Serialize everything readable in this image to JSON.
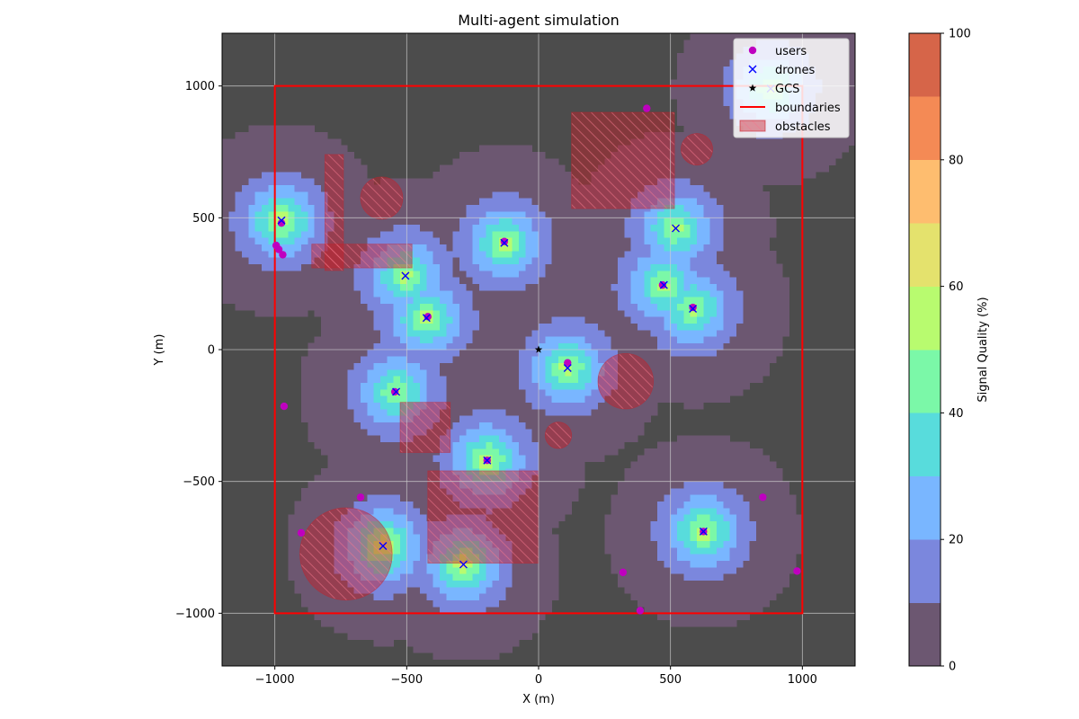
{
  "chart_data": {
    "type": "heatmap",
    "title": "Multi-agent simulation",
    "xlabel": "X (m)",
    "ylabel": "Y (m)",
    "xlim": [
      -1200,
      1200
    ],
    "ylim": [
      -1200,
      1200
    ],
    "xticks": [
      -1000,
      -500,
      0,
      500,
      1000
    ],
    "yticks": [
      -1000,
      -500,
      0,
      500,
      1000
    ],
    "xtick_labels": [
      "−1000",
      "−500",
      "0",
      "500",
      "1000"
    ],
    "ytick_labels": [
      "−1000",
      "−500",
      "0",
      "500",
      "1000"
    ],
    "grid": true,
    "legend_position": "top-right",
    "legend": [
      {
        "key": "users",
        "label": "users",
        "marker": "circle",
        "color": "#bf00bf"
      },
      {
        "key": "drones",
        "label": "drones",
        "marker": "x",
        "color": "#0000ff"
      },
      {
        "key": "gcs",
        "label": "GCS",
        "marker": "star",
        "color": "#000000"
      },
      {
        "key": "boundaries",
        "label": "boundaries",
        "marker": "line",
        "color": "#ff0000"
      },
      {
        "key": "obstacles",
        "label": "obstacles",
        "marker": "hatch",
        "color": "#dc2828"
      }
    ],
    "colorbar": {
      "label": "Signal Quality (%)",
      "min": 0,
      "max": 100,
      "ticks": [
        0,
        20,
        40,
        60,
        80,
        100
      ],
      "bands": [
        {
          "from": 0,
          "to": 10,
          "color": "#6c5771"
        },
        {
          "from": 10,
          "to": 20,
          "color": "#7b87dd"
        },
        {
          "from": 20,
          "to": 30,
          "color": "#79b6ff"
        },
        {
          "from": 30,
          "to": 40,
          "color": "#58dcdc"
        },
        {
          "from": 40,
          "to": 50,
          "color": "#7bf8a8"
        },
        {
          "from": 50,
          "to": 60,
          "color": "#b8fb6f"
        },
        {
          "from": 60,
          "to": 70,
          "color": "#e4e26d"
        },
        {
          "from": 70,
          "to": 80,
          "color": "#febd6f"
        },
        {
          "from": 80,
          "to": 90,
          "color": "#f48a55"
        },
        {
          "from": 90,
          "to": 100,
          "color": "#d66549"
        }
      ]
    },
    "background_color": "#4c4c4c",
    "boundaries": [
      [
        -1000,
        -1000
      ],
      [
        1000,
        -1000
      ],
      [
        1000,
        1000
      ],
      [
        -1000,
        1000
      ]
    ],
    "drones": [
      {
        "x": -975,
        "y": 490
      },
      {
        "x": -505,
        "y": 280
      },
      {
        "x": -425,
        "y": 120
      },
      {
        "x": -540,
        "y": -160
      },
      {
        "x": -195,
        "y": -420
      },
      {
        "x": -590,
        "y": -745
      },
      {
        "x": -285,
        "y": -815
      },
      {
        "x": -130,
        "y": 405
      },
      {
        "x": 110,
        "y": -70
      },
      {
        "x": 475,
        "y": 245
      },
      {
        "x": 520,
        "y": 460
      },
      {
        "x": 585,
        "y": 155
      },
      {
        "x": 625,
        "y": -690
      },
      {
        "x": 880,
        "y": 990
      }
    ],
    "users": [
      {
        "x": -975,
        "y": 480
      },
      {
        "x": -995,
        "y": 395
      },
      {
        "x": -985,
        "y": 380
      },
      {
        "x": -970,
        "y": 360
      },
      {
        "x": -965,
        "y": -215
      },
      {
        "x": -900,
        "y": -695
      },
      {
        "x": -675,
        "y": -560
      },
      {
        "x": -545,
        "y": -160
      },
      {
        "x": -420,
        "y": 125
      },
      {
        "x": -195,
        "y": -420
      },
      {
        "x": -130,
        "y": 410
      },
      {
        "x": 110,
        "y": -50
      },
      {
        "x": 410,
        "y": 915
      },
      {
        "x": 470,
        "y": 245
      },
      {
        "x": 585,
        "y": 160
      },
      {
        "x": 625,
        "y": -690
      },
      {
        "x": 320,
        "y": -845
      },
      {
        "x": 385,
        "y": -990
      },
      {
        "x": 850,
        "y": -560
      },
      {
        "x": 980,
        "y": -840
      }
    ],
    "gcs": {
      "x": 0,
      "y": 0
    },
    "obstacles": {
      "rectangles": [
        {
          "x0": 125,
          "y0": 535,
          "x1": 515,
          "y1": 900
        },
        {
          "x0": -810,
          "y0": 300,
          "x1": -740,
          "y1": 740
        },
        {
          "x0": -860,
          "y0": 310,
          "x1": -480,
          "y1": 400
        },
        {
          "x0": -525,
          "y0": -390,
          "x1": -335,
          "y1": -200
        },
        {
          "x0": -420,
          "y0": -810,
          "x1": 0,
          "y1": -460
        }
      ],
      "circles": [
        {
          "cx": -595,
          "cy": 575,
          "r": 80
        },
        {
          "cx": 600,
          "cy": 760,
          "r": 60
        },
        {
          "cx": 330,
          "cy": -120,
          "r": 105
        },
        {
          "cx": 75,
          "cy": -325,
          "r": 50
        },
        {
          "cx": -730,
          "cy": -775,
          "r": 175
        }
      ]
    },
    "signal_sources": [
      {
        "x": -975,
        "y": 490,
        "peak": 62
      },
      {
        "x": -505,
        "y": 280,
        "peak": 58
      },
      {
        "x": -425,
        "y": 120,
        "peak": 60
      },
      {
        "x": -540,
        "y": -160,
        "peak": 58
      },
      {
        "x": -195,
        "y": -420,
        "peak": 62
      },
      {
        "x": -590,
        "y": -745,
        "peak": 65
      },
      {
        "x": -285,
        "y": -815,
        "peak": 62
      },
      {
        "x": -130,
        "y": 405,
        "peak": 60
      },
      {
        "x": 110,
        "y": -70,
        "peak": 60
      },
      {
        "x": 475,
        "y": 245,
        "peak": 58
      },
      {
        "x": 520,
        "y": 460,
        "peak": 58
      },
      {
        "x": 585,
        "y": 155,
        "peak": 58
      },
      {
        "x": 625,
        "y": -690,
        "peak": 62
      },
      {
        "x": 880,
        "y": 990,
        "peak": 55
      }
    ]
  }
}
